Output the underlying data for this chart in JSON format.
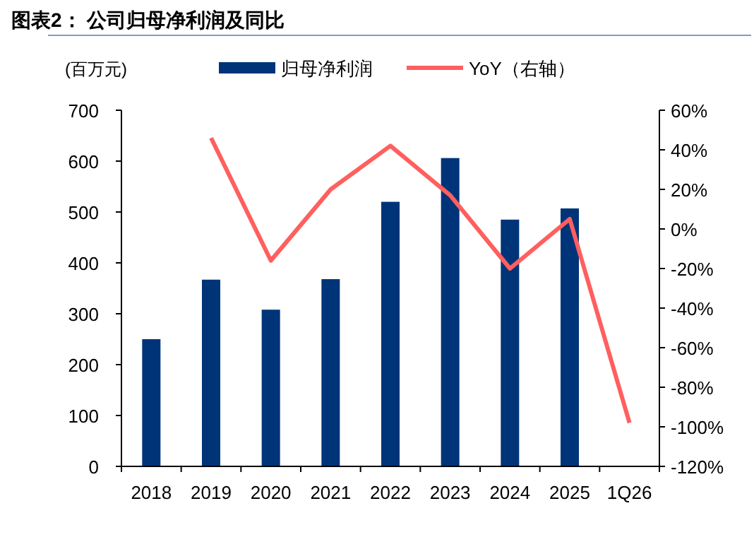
{
  "chart_data": {
    "type": "bar",
    "title": "图表2：  公司归母净利润及同比",
    "ylabel": "(百万元)",
    "categories": [
      "2018",
      "2019",
      "2020",
      "2021",
      "2022",
      "2023",
      "2024",
      "2025",
      "1Q26"
    ],
    "series": [
      {
        "name": "归母净利润",
        "color": "#003478",
        "values": [
          250,
          367,
          308,
          368,
          520,
          606,
          485,
          507,
          null
        ]
      },
      {
        "name": "YoY（右轴）",
        "type": "line",
        "axis": "y2",
        "color": "#ff5f5f",
        "values": [
          null,
          46,
          -16,
          20,
          42,
          17,
          -20,
          5,
          -98
        ]
      }
    ],
    "ylim": [
      0,
      700
    ],
    "yticks": [
      0,
      100,
      200,
      300,
      400,
      500,
      600,
      700
    ],
    "y2lim": [
      -120,
      60
    ],
    "y2ticks": [
      {
        "value": -120,
        "label": "-120%"
      },
      {
        "value": -100,
        "label": "-100%"
      },
      {
        "value": -80,
        "label": "-80%"
      },
      {
        "value": -60,
        "label": "-60%"
      },
      {
        "value": -40,
        "label": "-40%"
      },
      {
        "value": -20,
        "label": "-20%"
      },
      {
        "value": 0,
        "label": "0%"
      },
      {
        "value": 20,
        "label": "20%"
      },
      {
        "value": 40,
        "label": "40%"
      },
      {
        "value": 60,
        "label": "60%"
      }
    ],
    "legend": "top",
    "grid": false,
    "line_style": "solid",
    "marker": "none"
  }
}
